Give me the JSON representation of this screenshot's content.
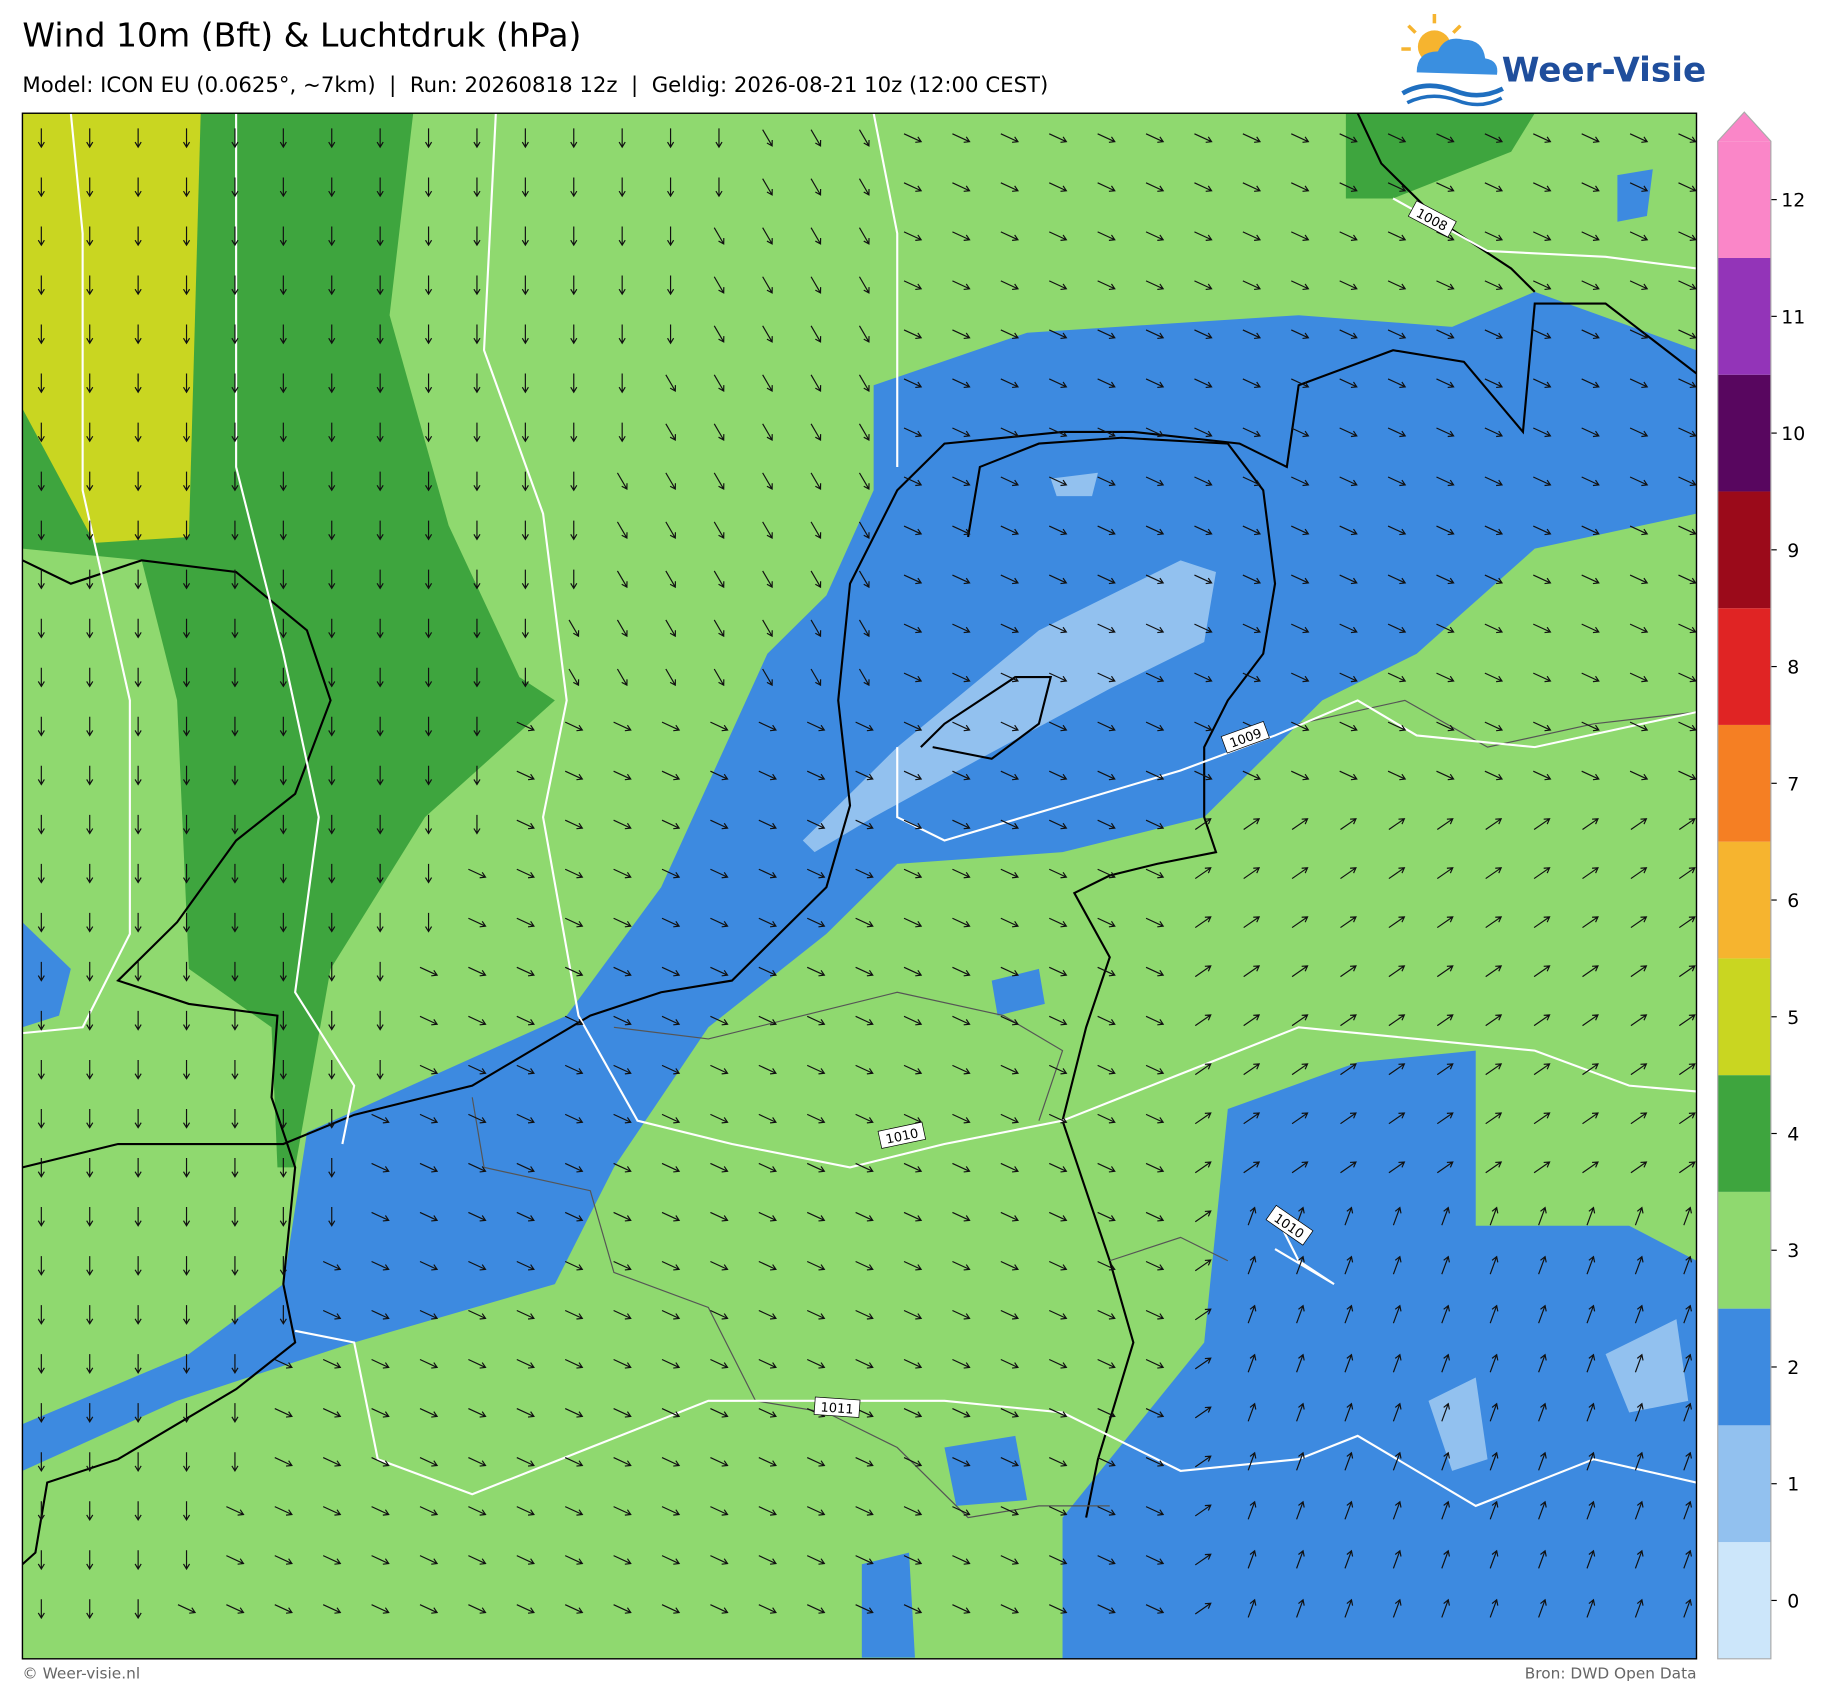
{
  "header": {
    "title": "Wind 10m (Bft) & Luchtdruk (hPa)",
    "subtitle": "Model: ICON EU (0.0625°, ~7km)  |  Run: 20260818 12z  |  Geldig: 2026-08-21 10z (12:00 CEST)"
  },
  "logo": {
    "text": "Weer-Visie"
  },
  "map": {
    "isobar_labels": [
      "1008",
      "1009",
      "1010",
      "1010",
      "1011"
    ]
  },
  "colorbar": {
    "ticks": [
      0,
      1,
      2,
      3,
      4,
      5,
      6,
      7,
      8,
      9,
      10,
      11,
      12
    ],
    "colors": [
      "#cce6fa",
      "#92c1ef",
      "#3d8ae0",
      "#8fd96f",
      "#3ea53e",
      "#c9d621",
      "#f6b42f",
      "#f57f23",
      "#e02424",
      "#9b0a1a",
      "#58065f",
      "#9334b8",
      "#fa86c8"
    ]
  },
  "footer": {
    "left": "© Weer-visie.nl",
    "right": "Bron: DWD Open Data"
  }
}
